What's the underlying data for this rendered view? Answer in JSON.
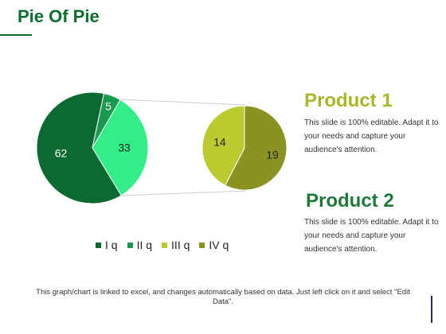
{
  "title": "Pie Of Pie",
  "colors": {
    "title_green": "#0b6e2e",
    "product1_title": "#a8b72a",
    "product2_title": "#1f7a3a",
    "connector": "#cccccc"
  },
  "chart_data": {
    "type": "pie",
    "subtype": "pie-of-pie",
    "main_pie": {
      "slices": [
        {
          "category": "I q",
          "value": 62,
          "color": "#0b6a31"
        },
        {
          "category": "II q",
          "value": 5,
          "color": "#1a9a4e"
        },
        {
          "category": "III q",
          "value": 33,
          "color": "#33ee88"
        }
      ]
    },
    "secondary_pie": {
      "slices": [
        {
          "category": "IV q",
          "value": 19,
          "color": "#8a9321"
        },
        {
          "category": "III q",
          "value": 14,
          "color": "#b9cb2f"
        }
      ]
    },
    "legend": [
      {
        "label": "I q",
        "color": "#0b6a31"
      },
      {
        "label": "II q",
        "color": "#1a9a4e"
      },
      {
        "label": "III q",
        "color": "#b9cb2f"
      },
      {
        "label": "IV q",
        "color": "#8a9321"
      }
    ]
  },
  "products": [
    {
      "title": "Product 1",
      "text": "This slide is 100% editable. Adapt it to your needs and capture your audience's attention."
    },
    {
      "title": "Product 2",
      "text": "This slide is 100% editable. Adapt it to your needs and capture your audience's attention."
    }
  ],
  "footnote": "This graph/chart is linked to excel, and changes automatically based on data. Just left click on it and select \"Edit Data\"."
}
